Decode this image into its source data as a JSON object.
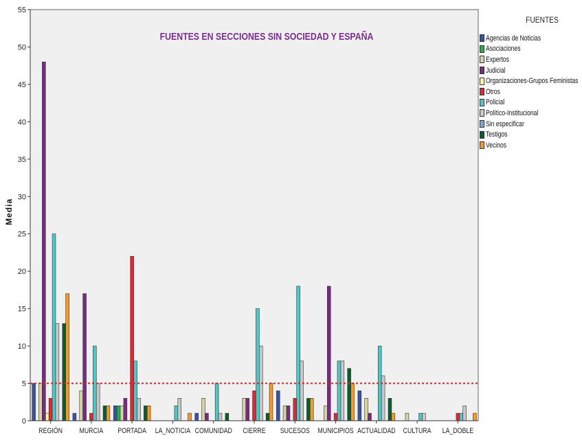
{
  "chart_data": {
    "type": "bar",
    "title": "FUENTES EN SECCIONES SIN SOCIEDAD Y ESPAÑA",
    "xlabel": "",
    "ylabel": "Media",
    "ylim": [
      0,
      55
    ],
    "yticks": [
      0,
      5,
      10,
      15,
      20,
      25,
      30,
      35,
      40,
      45,
      50,
      55
    ],
    "reference_line": 5,
    "grid": false,
    "legend_title": "FUENTES",
    "legend_position": "right",
    "categories": [
      "REGIÓN",
      "MURCIA",
      "PORTADA",
      "LA_NOTICIA",
      "COMUNIDAD",
      "CIERRE",
      "SUCESOS",
      "MUNICIPIOS",
      "ACTUALIDAD",
      "CULTURA",
      "LA_DOBLE"
    ],
    "series": [
      {
        "name": "Agencias de Noticias",
        "color": "#3953a4",
        "values": [
          5,
          1,
          2,
          0,
          1,
          0,
          4,
          0,
          4,
          0,
          0
        ]
      },
      {
        "name": "Asociaciones",
        "color": "#22b14c",
        "values": [
          0,
          0,
          2,
          0,
          0,
          0,
          0,
          0,
          0,
          0,
          0
        ]
      },
      {
        "name": "Expertos",
        "color": "#d7d3a7",
        "values": [
          5,
          4,
          2,
          0,
          3,
          3,
          2,
          2,
          3,
          1,
          0
        ]
      },
      {
        "name": "Judicial",
        "color": "#7a2a82",
        "values": [
          48,
          17,
          3,
          0,
          1,
          3,
          2,
          18,
          1,
          0,
          0
        ]
      },
      {
        "name": "Organizaciones-Grupos Feministas",
        "color": "#ffff99",
        "values": [
          1,
          0,
          0,
          0,
          0,
          0,
          0,
          0,
          0,
          0,
          0
        ]
      },
      {
        "name": "Otros",
        "color": "#e32636",
        "values": [
          3,
          1,
          22,
          0,
          0,
          4,
          3,
          1,
          0,
          0,
          1
        ]
      },
      {
        "name": "Policial",
        "color": "#4fc7c7",
        "values": [
          25,
          10,
          8,
          2,
          5,
          15,
          18,
          8,
          10,
          1,
          1
        ]
      },
      {
        "name": "Político-Institucional",
        "color": "#c8c8c8",
        "values": [
          13,
          5,
          3,
          3,
          1,
          10,
          8,
          8,
          6,
          1,
          2
        ]
      },
      {
        "name": "Sin especificar",
        "color": "#7ba7d7",
        "values": [
          0,
          0,
          0,
          0,
          0,
          0,
          0,
          0,
          0,
          0,
          0
        ]
      },
      {
        "name": "Testigos",
        "color": "#0b5d2f",
        "values": [
          13,
          2,
          2,
          0,
          1,
          1,
          3,
          7,
          3,
          0,
          0
        ]
      },
      {
        "name": "Vecinos",
        "color": "#f49a2b",
        "values": [
          17,
          2,
          2,
          1,
          0,
          5,
          3,
          5,
          1,
          0,
          1
        ]
      }
    ]
  },
  "colors": {
    "title": "#7b2c8f",
    "plot_background": "#f0f0f0",
    "reference_line": "#b03030"
  }
}
